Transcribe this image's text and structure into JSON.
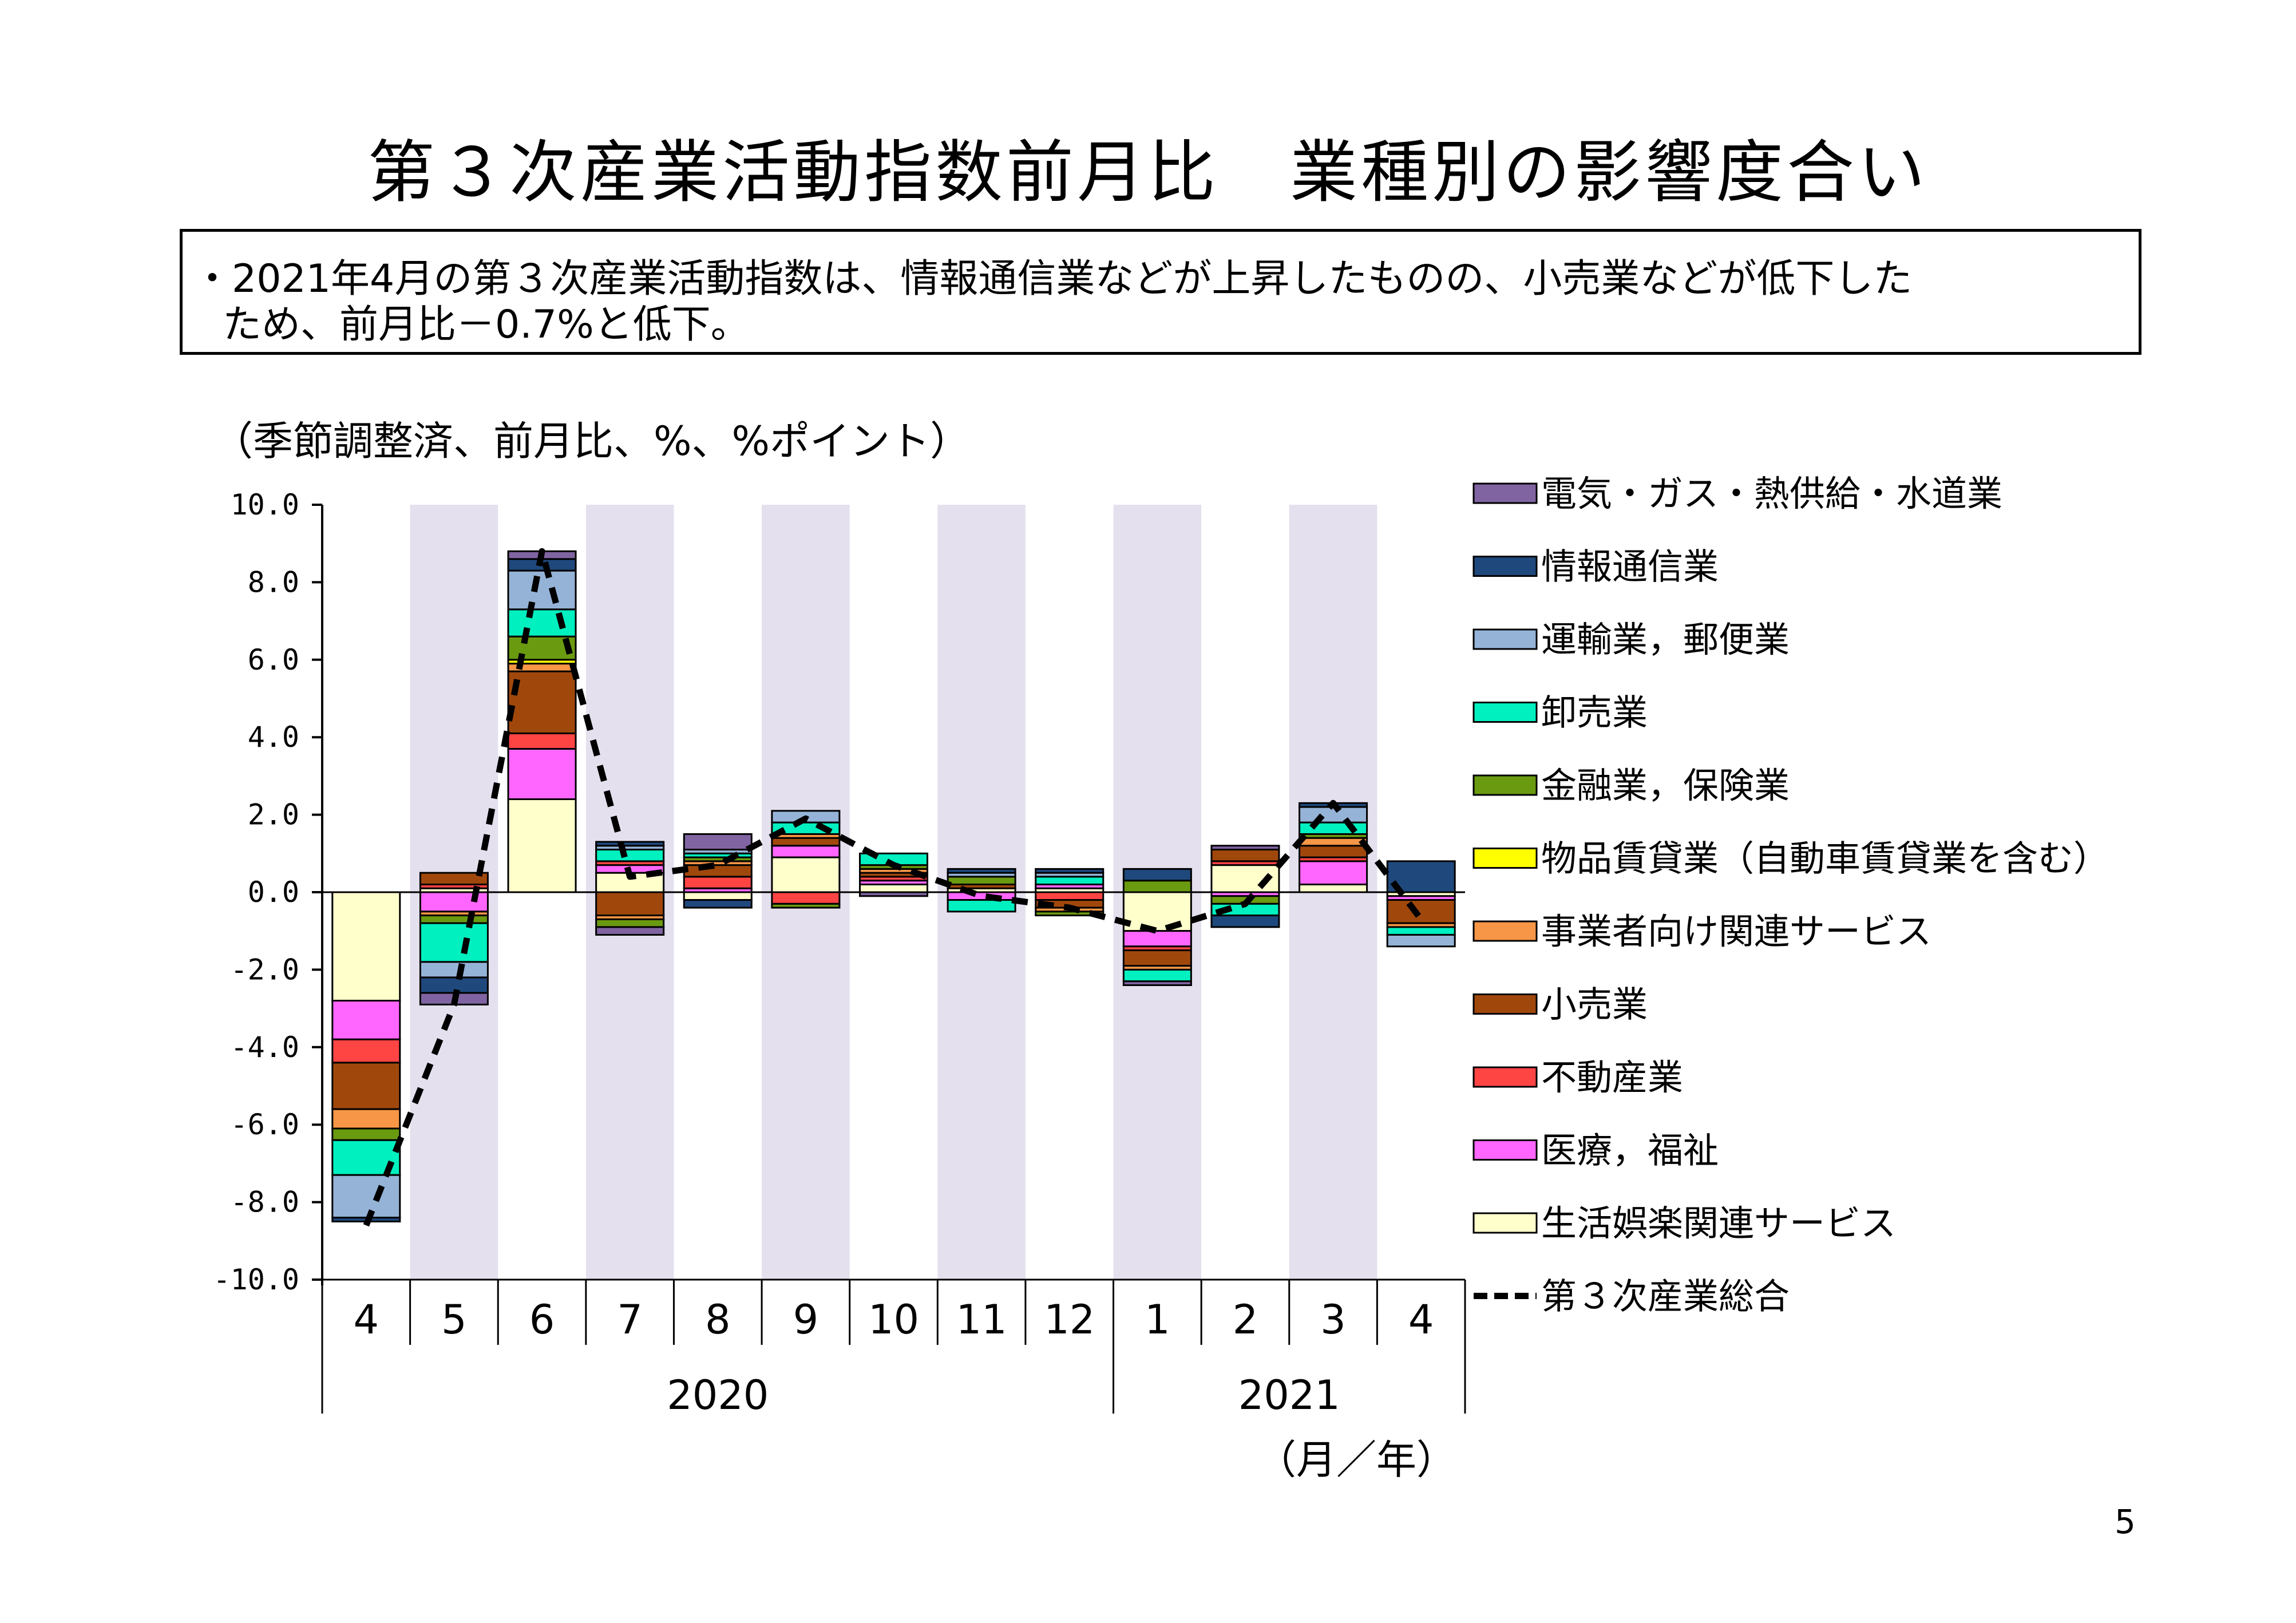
{
  "title": "第３次産業活動指数前月比　業種別の影響度合い",
  "summary": {
    "line1": "・2021年4月の第３次産業活動指数は、情報通信業などが上昇したものの、小売業などが低下した",
    "line2": "ため、前月比－0.7%と低下。"
  },
  "page_number": "5",
  "chart_data": {
    "type": "bar",
    "stacked": true,
    "ylabel": "（季節調整済、前月比、%、%ポイント）",
    "xlabel": "（月／年）",
    "ylim": [
      -10,
      10
    ],
    "yticks": [
      "10.0",
      "8.0",
      "6.0",
      "4.0",
      "2.0",
      "0.0",
      "-2.0",
      "-4.0",
      "-6.0",
      "-8.0",
      "-10.0"
    ],
    "categories": [
      "4",
      "5",
      "6",
      "7",
      "8",
      "9",
      "10",
      "11",
      "12",
      "1",
      "2",
      "3",
      "4"
    ],
    "year_groups": [
      {
        "label": "2020",
        "start": 0,
        "end": 8
      },
      {
        "label": "2021",
        "start": 9,
        "end": 12
      }
    ],
    "shaded_months": [
      1,
      3,
      5,
      7,
      9,
      11
    ],
    "series": [
      {
        "name": "生活娯楽関連サービス",
        "color": "#ffffcc",
        "values": [
          -2.8,
          0.1,
          2.4,
          0.5,
          -0.2,
          0.9,
          0.2,
          0.1,
          0.1,
          -1.0,
          0.7,
          0.2,
          -0.1
        ]
      },
      {
        "name": "医療，福祉",
        "color": "#ff66ff",
        "values": [
          -1.0,
          -0.5,
          1.3,
          0.2,
          0.1,
          0.3,
          0.1,
          -0.2,
          0.1,
          -0.4,
          -0.1,
          0.6,
          -0.1
        ]
      },
      {
        "name": "不動産業",
        "color": "#ff4444",
        "values": [
          -0.6,
          0.1,
          0.4,
          0.1,
          0.3,
          -0.3,
          0.1,
          0.0,
          -0.2,
          -0.1,
          0.1,
          0.1,
          0.0
        ]
      },
      {
        "name": "小売業",
        "color": "#a0480c",
        "values": [
          -1.2,
          0.3,
          1.6,
          -0.6,
          0.3,
          0.2,
          0.1,
          0.1,
          -0.2,
          -0.4,
          0.3,
          0.3,
          -0.6
        ]
      },
      {
        "name": "事業者向け関連サービス",
        "color": "#f79646",
        "values": [
          -0.5,
          -0.1,
          0.2,
          -0.1,
          0.1,
          0.1,
          0.1,
          0.0,
          -0.1,
          -0.1,
          0.0,
          0.2,
          -0.1
        ]
      },
      {
        "name": "物品賃貸業（自動車賃貸業を含む）",
        "color": "#ffff00",
        "values": [
          0.0,
          0.0,
          0.1,
          0.0,
          0.0,
          0.0,
          0.0,
          0.0,
          0.0,
          0.0,
          0.0,
          0.0,
          0.0
        ]
      },
      {
        "name": "金融業，保険業",
        "color": "#6a9a10",
        "values": [
          -0.3,
          -0.2,
          0.6,
          -0.2,
          0.1,
          -0.1,
          0.1,
          0.2,
          -0.1,
          0.3,
          -0.2,
          0.1,
          0.0
        ]
      },
      {
        "name": "卸売業",
        "color": "#00f0c0",
        "values": [
          -0.9,
          -1.0,
          0.7,
          0.3,
          0.1,
          0.3,
          0.3,
          -0.3,
          0.2,
          -0.3,
          -0.3,
          0.3,
          -0.2
        ]
      },
      {
        "name": "運輸業，郵便業",
        "color": "#95b3d7",
        "values": [
          -1.1,
          -0.4,
          1.0,
          0.1,
          0.1,
          0.3,
          0.0,
          0.1,
          0.1,
          0.0,
          0.0,
          0.4,
          -0.3
        ]
      },
      {
        "name": "情報通信業",
        "color": "#1f497d",
        "values": [
          -0.1,
          -0.4,
          0.3,
          0.1,
          -0.2,
          0.0,
          0.0,
          0.1,
          0.1,
          0.3,
          -0.3,
          0.1,
          0.8
        ]
      },
      {
        "name": "電気・ガス・熱供給・水道業",
        "color": "#8064a2",
        "values": [
          0.0,
          -0.3,
          0.2,
          -0.2,
          0.4,
          0.0,
          -0.1,
          0.0,
          0.0,
          -0.1,
          0.1,
          0.0,
          0.0
        ]
      }
    ],
    "total_line": {
      "name": "第３次産業総合",
      "values": [
        -8.6,
        -2.9,
        8.8,
        0.4,
        0.7,
        1.9,
        0.7,
        -0.1,
        -0.4,
        -1.0,
        -0.3,
        2.3,
        -0.7
      ]
    },
    "legend_order": [
      "電気・ガス・熱供給・水道業",
      "情報通信業",
      "運輸業，郵便業",
      "卸売業",
      "金融業，保険業",
      "物品賃貸業（自動車賃貸業を含む）",
      "事業者向け関連サービス",
      "小売業",
      "不動産業",
      "医療，福祉",
      "生活娯楽関連サービス",
      "第３次産業総合"
    ]
  }
}
